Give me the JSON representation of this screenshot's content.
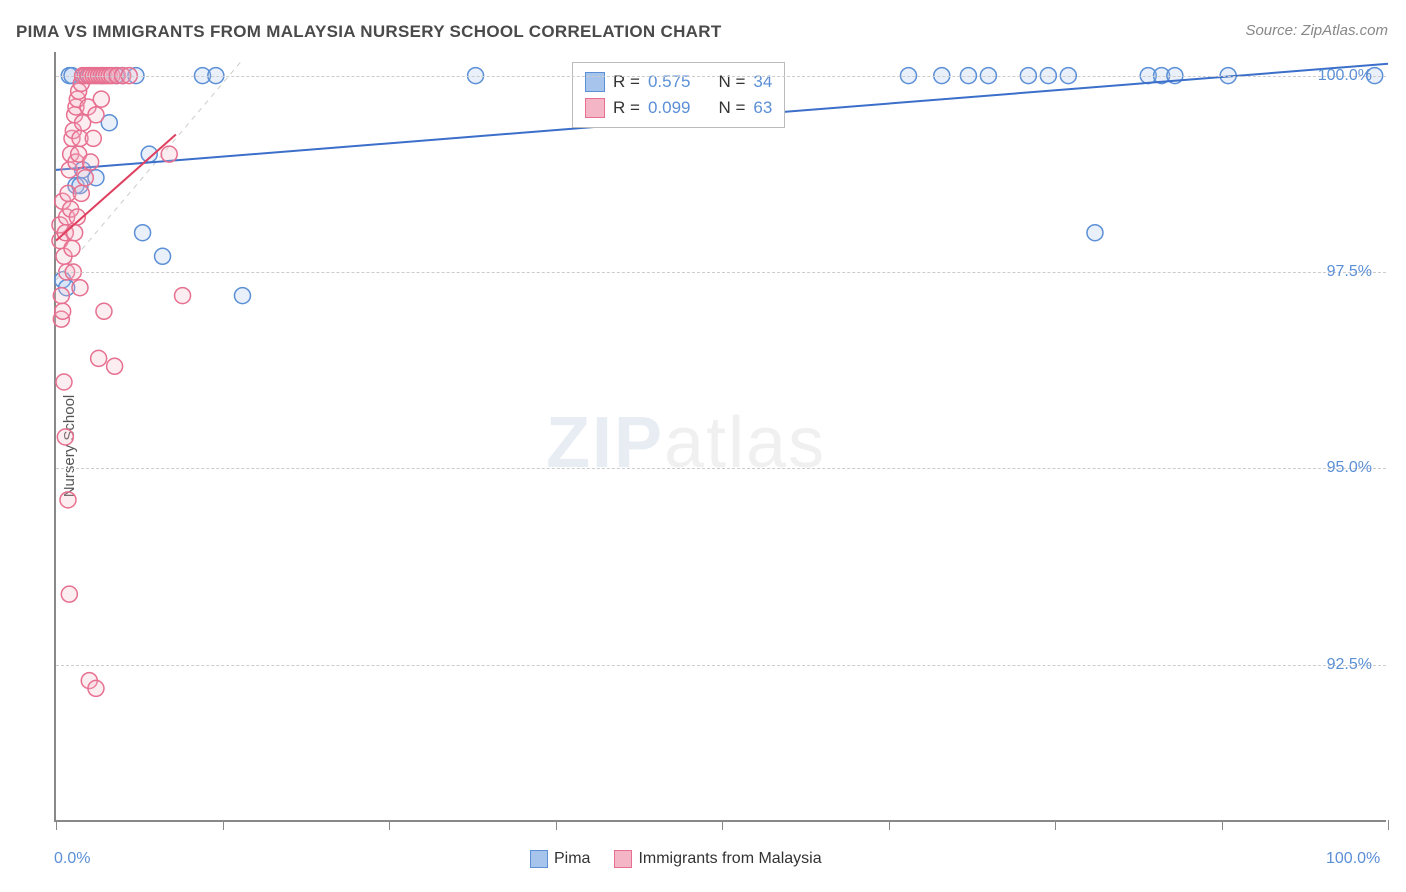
{
  "title": "PIMA VS IMMIGRANTS FROM MALAYSIA NURSERY SCHOOL CORRELATION CHART",
  "source": "Source: ZipAtlas.com",
  "watermark_zip": "ZIP",
  "watermark_atlas": "atlas",
  "y_axis_title": "Nursery School",
  "chart": {
    "type": "scatter",
    "xlim": [
      0,
      100
    ],
    "ylim": [
      90.5,
      100.3
    ],
    "x_ticks": [
      0,
      12.5,
      25,
      37.5,
      50,
      62.5,
      75,
      87.5,
      100
    ],
    "x_tick_labels": {
      "0": "0.0%",
      "100": "100.0%"
    },
    "y_gridlines": [
      92.5,
      95.0,
      97.5,
      100.0
    ],
    "y_tick_labels": [
      "92.5%",
      "95.0%",
      "97.5%",
      "100.0%"
    ],
    "background_color": "#ffffff",
    "grid_color": "#cccccc",
    "axis_color": "#888888",
    "marker_radius": 8,
    "series": [
      {
        "name": "Pima",
        "color_fill": "#a7c5ec",
        "color_stroke": "#5b8fd6",
        "R": "0.575",
        "N": "34",
        "trend": {
          "x1": 0,
          "y1": 98.8,
          "x2": 100,
          "y2": 100.15,
          "color": "#3b6fc9",
          "width": 2
        },
        "points": [
          [
            0.5,
            97.4
          ],
          [
            0.8,
            97.3
          ],
          [
            1.0,
            100.0
          ],
          [
            1.2,
            100.0
          ],
          [
            1.5,
            98.6
          ],
          [
            1.8,
            98.6
          ],
          [
            2.0,
            98.8
          ],
          [
            2.5,
            100.0
          ],
          [
            3.0,
            98.7
          ],
          [
            3.5,
            100.0
          ],
          [
            4.0,
            99.4
          ],
          [
            4.5,
            100.0
          ],
          [
            5.0,
            100.0
          ],
          [
            6.0,
            100.0
          ],
          [
            6.5,
            98.0
          ],
          [
            7.0,
            99.0
          ],
          [
            8.0,
            97.7
          ],
          [
            11.0,
            100.0
          ],
          [
            12.0,
            100.0
          ],
          [
            14.0,
            97.2
          ],
          [
            31.5,
            100.0
          ],
          [
            64.0,
            100.0
          ],
          [
            66.5,
            100.0
          ],
          [
            68.5,
            100.0
          ],
          [
            70.0,
            100.0
          ],
          [
            73.0,
            100.0
          ],
          [
            74.5,
            100.0
          ],
          [
            76.0,
            100.0
          ],
          [
            78.0,
            98.0
          ],
          [
            82.0,
            100.0
          ],
          [
            83.0,
            100.0
          ],
          [
            84.0,
            100.0
          ],
          [
            88.0,
            100.0
          ],
          [
            99.0,
            100.0
          ]
        ]
      },
      {
        "name": "Immigrants from Malaysia",
        "color_fill": "#f4b6c6",
        "color_stroke": "#e76f8f",
        "R": "0.099",
        "N": "63",
        "trend": {
          "x1": 0,
          "y1": 97.9,
          "x2": 9,
          "y2": 99.25,
          "color": "#e04060",
          "width": 2
        },
        "points": [
          [
            0.3,
            97.9
          ],
          [
            0.3,
            98.1
          ],
          [
            0.4,
            97.2
          ],
          [
            0.4,
            96.9
          ],
          [
            0.5,
            97.0
          ],
          [
            0.5,
            98.4
          ],
          [
            0.6,
            97.7
          ],
          [
            0.6,
            96.1
          ],
          [
            0.7,
            98.0
          ],
          [
            0.7,
            95.4
          ],
          [
            0.8,
            98.2
          ],
          [
            0.8,
            97.5
          ],
          [
            0.9,
            98.5
          ],
          [
            0.9,
            94.6
          ],
          [
            1.0,
            98.8
          ],
          [
            1.0,
            93.4
          ],
          [
            1.1,
            99.0
          ],
          [
            1.1,
            98.3
          ],
          [
            1.2,
            99.2
          ],
          [
            1.2,
            97.8
          ],
          [
            1.3,
            97.5
          ],
          [
            1.3,
            99.3
          ],
          [
            1.4,
            99.5
          ],
          [
            1.4,
            98.0
          ],
          [
            1.5,
            99.6
          ],
          [
            1.5,
            98.9
          ],
          [
            1.6,
            99.7
          ],
          [
            1.6,
            98.2
          ],
          [
            1.7,
            99.8
          ],
          [
            1.7,
            99.0
          ],
          [
            1.8,
            99.2
          ],
          [
            1.8,
            97.3
          ],
          [
            1.9,
            99.9
          ],
          [
            1.9,
            98.5
          ],
          [
            2.0,
            100.0
          ],
          [
            2.0,
            99.4
          ],
          [
            2.2,
            100.0
          ],
          [
            2.2,
            98.7
          ],
          [
            2.4,
            100.0
          ],
          [
            2.4,
            99.6
          ],
          [
            2.6,
            100.0
          ],
          [
            2.6,
            98.9
          ],
          [
            2.8,
            100.0
          ],
          [
            2.8,
            99.2
          ],
          [
            3.0,
            100.0
          ],
          [
            3.0,
            99.5
          ],
          [
            3.2,
            100.0
          ],
          [
            3.2,
            96.4
          ],
          [
            3.4,
            100.0
          ],
          [
            3.4,
            99.7
          ],
          [
            3.6,
            100.0
          ],
          [
            3.6,
            97.0
          ],
          [
            3.8,
            100.0
          ],
          [
            4.0,
            100.0
          ],
          [
            4.2,
            100.0
          ],
          [
            4.4,
            96.3
          ],
          [
            4.6,
            100.0
          ],
          [
            5.0,
            100.0
          ],
          [
            5.5,
            100.0
          ],
          [
            2.5,
            92.3
          ],
          [
            3.0,
            92.2
          ],
          [
            8.5,
            99.0
          ],
          [
            9.5,
            97.2
          ]
        ]
      }
    ]
  },
  "legend_labels": {
    "R": "R =",
    "N": "N =",
    "pima": "Pima",
    "malaysia": "Immigrants from Malaysia"
  }
}
